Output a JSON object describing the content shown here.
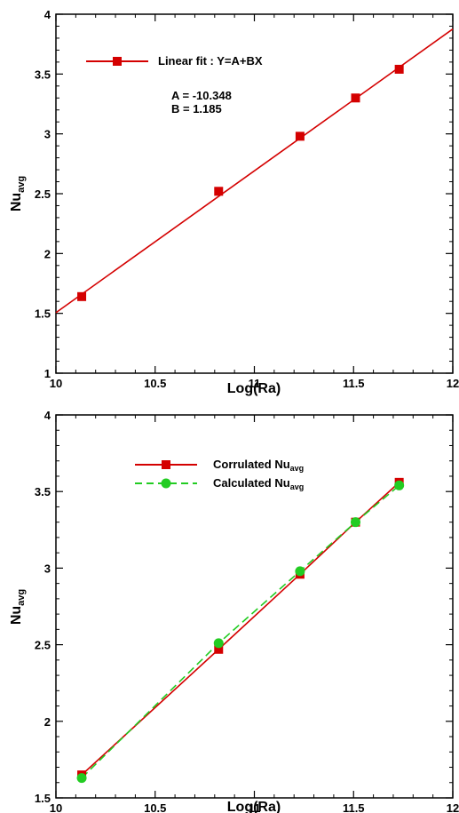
{
  "chart_data": [
    {
      "type": "scatter",
      "xlabel": "Log(Ra)",
      "ylabel": {
        "base": "Nu",
        "sub": "avg"
      },
      "xlim": [
        10,
        12
      ],
      "ylim": [
        1,
        4
      ],
      "xticks": [
        "10",
        "10.5",
        "11",
        "11.5",
        "12"
      ],
      "yticks": [
        "1",
        "1.5",
        "2",
        "2.5",
        "3",
        "3.5",
        "4"
      ],
      "grid": false,
      "legend_position": "top-left",
      "series": [
        {
          "name": "Linear fit  :  Y=A+BX",
          "color": "#d40000",
          "marker": "square",
          "line": "solid",
          "x": [
            10.13,
            10.82,
            11.23,
            11.51,
            11.73
          ],
          "y": [
            1.64,
            2.52,
            2.98,
            3.3,
            3.54
          ]
        }
      ],
      "fit_line": {
        "x": [
          10,
          12
        ],
        "y": [
          1.506,
          3.876
        ]
      },
      "annotations": [
        "A = -10.348",
        "B =  1.185"
      ]
    },
    {
      "type": "line",
      "xlabel": "Log(Ra)",
      "ylabel": {
        "base": "Nu",
        "sub": "avg"
      },
      "xlim": [
        10,
        12
      ],
      "ylim": [
        1.5,
        4
      ],
      "xticks": [
        "10",
        "10.5",
        "11",
        "11.5",
        "12"
      ],
      "yticks": [
        "1.5",
        "2",
        "2.5",
        "3",
        "3.5",
        "4"
      ],
      "grid": false,
      "legend_position": "top-center",
      "series": [
        {
          "name": {
            "base": "Corrulated Nu",
            "sub": "avg"
          },
          "color": "#d40000",
          "marker": "square",
          "line": "solid",
          "x": [
            10.13,
            10.82,
            11.23,
            11.51,
            11.73
          ],
          "y": [
            1.65,
            2.47,
            2.96,
            3.3,
            3.56
          ]
        },
        {
          "name": {
            "base": "Calculated Nu",
            "sub": "avg"
          },
          "color": "#22cc22",
          "marker": "circle",
          "line": "dashed",
          "x": [
            10.13,
            10.82,
            11.23,
            11.51,
            11.73
          ],
          "y": [
            1.63,
            2.51,
            2.98,
            3.3,
            3.54
          ]
        }
      ]
    }
  ]
}
